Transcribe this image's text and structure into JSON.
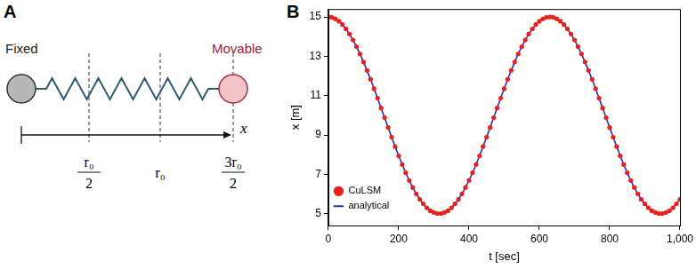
{
  "panels": {
    "A": {
      "label": "A",
      "fixed": "Fixed",
      "movable": "Movable",
      "axis": "x",
      "marks": [
        {
          "num": "r₀",
          "den": "2"
        },
        {
          "text": "r₀"
        },
        {
          "num": "3r₀",
          "den": "2"
        }
      ]
    }
  },
  "chart_data": {
    "panel_label": "B",
    "type": "line",
    "x_label": "t [sec]",
    "y_label": "x [m]",
    "x": [
      0,
      10,
      20,
      30,
      40,
      50,
      60,
      70,
      80,
      90,
      100,
      110,
      120,
      130,
      140,
      150,
      160,
      170,
      180,
      190,
      200,
      210,
      220,
      230,
      240,
      250,
      260,
      270,
      280,
      290,
      300,
      310,
      320,
      330,
      340,
      350,
      360,
      370,
      380,
      390,
      400,
      410,
      420,
      430,
      440,
      450,
      460,
      470,
      480,
      490,
      500,
      510,
      520,
      530,
      540,
      550,
      560,
      570,
      580,
      590,
      600,
      610,
      620,
      630,
      640,
      650,
      660,
      670,
      680,
      690,
      700,
      710,
      720,
      730,
      740,
      750,
      760,
      770,
      780,
      790,
      800,
      810,
      820,
      830,
      840,
      850,
      860,
      870,
      880,
      890,
      900,
      910,
      920,
      930,
      940,
      950,
      960,
      970,
      980,
      990,
      1000
    ],
    "series": [
      {
        "name": "CuLSM",
        "color": "#e8211d",
        "marker": "circle",
        "line_style": "none",
        "values": [
          15.0,
          14.98,
          14.9,
          14.78,
          14.61,
          14.39,
          14.13,
          13.83,
          13.49,
          13.12,
          12.71,
          12.28,
          11.83,
          11.35,
          10.87,
          10.37,
          9.88,
          9.38,
          8.89,
          8.41,
          7.94,
          7.5,
          7.08,
          6.69,
          6.33,
          6.01,
          5.73,
          5.5,
          5.3,
          5.15,
          5.06,
          5.01,
          5.01,
          5.06,
          5.15,
          5.3,
          5.5,
          5.73,
          6.01,
          6.33,
          6.69,
          7.08,
          7.5,
          7.94,
          8.41,
          8.89,
          9.38,
          9.88,
          10.37,
          10.87,
          11.35,
          11.83,
          12.28,
          12.71,
          13.12,
          13.49,
          13.83,
          14.13,
          14.39,
          14.61,
          14.78,
          14.9,
          14.98,
          15.0,
          14.98,
          14.9,
          14.78,
          14.61,
          14.39,
          14.13,
          13.83,
          13.49,
          13.12,
          12.71,
          12.28,
          11.83,
          11.35,
          10.87,
          10.37,
          9.88,
          9.38,
          8.89,
          8.41,
          7.94,
          7.5,
          7.08,
          6.69,
          6.33,
          6.01,
          5.73,
          5.5,
          5.3,
          5.15,
          5.06,
          5.01,
          5.01,
          5.06,
          5.15,
          5.3,
          5.5,
          5.73
        ]
      },
      {
        "name": "analytical",
        "color": "#1f2ecf",
        "marker": "none",
        "line_style": "solid",
        "values": [
          15.0,
          14.98,
          14.9,
          14.78,
          14.61,
          14.39,
          14.13,
          13.83,
          13.49,
          13.12,
          12.71,
          12.28,
          11.83,
          11.35,
          10.87,
          10.37,
          9.88,
          9.38,
          8.89,
          8.41,
          7.94,
          7.5,
          7.08,
          6.69,
          6.33,
          6.01,
          5.73,
          5.5,
          5.3,
          5.15,
          5.06,
          5.01,
          5.01,
          5.06,
          5.15,
          5.3,
          5.5,
          5.73,
          6.01,
          6.33,
          6.69,
          7.08,
          7.5,
          7.94,
          8.41,
          8.89,
          9.38,
          9.88,
          10.37,
          10.87,
          11.35,
          11.83,
          12.28,
          12.71,
          13.12,
          13.49,
          13.83,
          14.13,
          14.39,
          14.61,
          14.78,
          14.9,
          14.98,
          15.0,
          14.98,
          14.9,
          14.78,
          14.61,
          14.39,
          14.13,
          13.83,
          13.49,
          13.12,
          12.71,
          12.28,
          11.83,
          11.35,
          10.87,
          10.37,
          9.88,
          9.38,
          8.89,
          8.41,
          7.94,
          7.5,
          7.08,
          6.69,
          6.33,
          6.01,
          5.73,
          5.5,
          5.3,
          5.15,
          5.06,
          5.01,
          5.01,
          5.06,
          5.15,
          5.3,
          5.5,
          5.73
        ]
      }
    ],
    "xlim": [
      0,
      1000
    ],
    "xticks": [
      0,
      200,
      400,
      600,
      800,
      1000
    ],
    "ylim": [
      4.4,
      15.4
    ],
    "yticks": [
      5,
      7,
      9,
      11,
      13,
      15
    ],
    "grid": false,
    "legend": "upper right"
  }
}
